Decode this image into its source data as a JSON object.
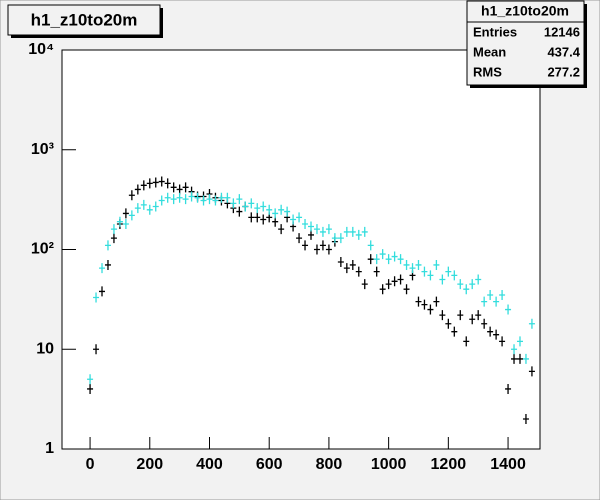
{
  "chart_data": {
    "type": "errorhist",
    "title": "h1_z10to20m",
    "stats": [
      {
        "label": "Entries",
        "value": 12146
      },
      {
        "label": "Mean",
        "value": 437.4
      },
      {
        "label": "RMS",
        "value": 277.2
      }
    ],
    "x": [
      0,
      20,
      40,
      60,
      80,
      100,
      120,
      140,
      160,
      180,
      200,
      220,
      240,
      260,
      280,
      300,
      320,
      340,
      360,
      380,
      400,
      420,
      440,
      460,
      480,
      500,
      520,
      540,
      560,
      580,
      600,
      620,
      640,
      660,
      680,
      700,
      720,
      740,
      760,
      780,
      800,
      820,
      840,
      860,
      880,
      900,
      920,
      940,
      960,
      980,
      1000,
      1020,
      1040,
      1060,
      1080,
      1100,
      1120,
      1140,
      1160,
      1180,
      1200,
      1220,
      1240,
      1260,
      1280,
      1300,
      1320,
      1340,
      1360,
      1380,
      1400,
      1420,
      1440,
      1460,
      1480
    ],
    "series": [
      {
        "color": "#000000",
        "values": [
          4,
          10,
          38,
          70,
          130,
          180,
          230,
          350,
          400,
          440,
          460,
          470,
          480,
          460,
          420,
          400,
          420,
          380,
          340,
          340,
          360,
          330,
          310,
          290,
          260,
          240,
          270,
          210,
          210,
          200,
          210,
          190,
          160,
          210,
          170,
          130,
          110,
          140,
          100,
          110,
          100,
          120,
          75,
          65,
          70,
          60,
          45,
          80,
          60,
          40,
          45,
          48,
          50,
          40,
          55,
          30,
          28,
          25,
          30,
          22,
          18,
          15,
          22,
          12,
          20,
          22,
          18,
          15,
          14,
          12,
          4,
          8,
          8,
          2,
          6
        ]
      },
      {
        "color": "#33dddd",
        "values": [
          5,
          33,
          65,
          110,
          160,
          190,
          180,
          220,
          260,
          280,
          250,
          270,
          310,
          330,
          320,
          330,
          320,
          340,
          330,
          310,
          320,
          310,
          330,
          330,
          290,
          320,
          270,
          290,
          260,
          270,
          250,
          230,
          250,
          240,
          200,
          210,
          180,
          170,
          160,
          150,
          160,
          130,
          130,
          150,
          150,
          140,
          150,
          110,
          80,
          90,
          80,
          85,
          80,
          70,
          65,
          70,
          60,
          55,
          70,
          50,
          60,
          55,
          45,
          40,
          45,
          50,
          30,
          35,
          30,
          35,
          25,
          10,
          12,
          8,
          18
        ]
      }
    ],
    "xlim": [
      -94,
      1507
    ],
    "xticks": [
      0,
      200,
      400,
      600,
      800,
      1000,
      1200,
      1400
    ],
    "ylim": [
      1,
      10000
    ],
    "ylog": true,
    "yticks": [
      1,
      10,
      {
        "value": 100,
        "label": "10²"
      },
      {
        "value": 1000,
        "label": "10³"
      },
      {
        "value": 10000,
        "label": "10⁴"
      }
    ]
  }
}
